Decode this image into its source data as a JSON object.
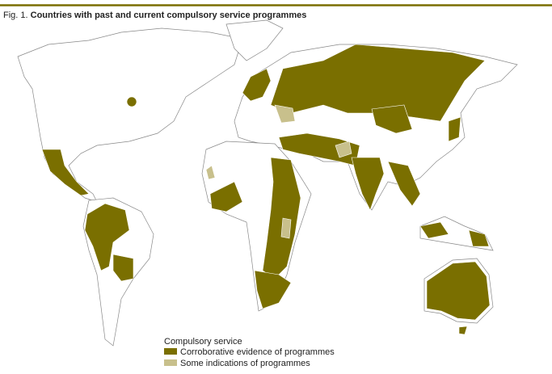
{
  "figure": {
    "number": "Fig. 1.",
    "title": "Countries with past and current compulsory service programmes"
  },
  "legend": {
    "title": "Compulsory service",
    "items": [
      {
        "label": "Corroborative evidence of programmes",
        "color": "#7a6f00"
      },
      {
        "label": "Some indications of programmes",
        "color": "#c8c08c"
      }
    ]
  }
}
